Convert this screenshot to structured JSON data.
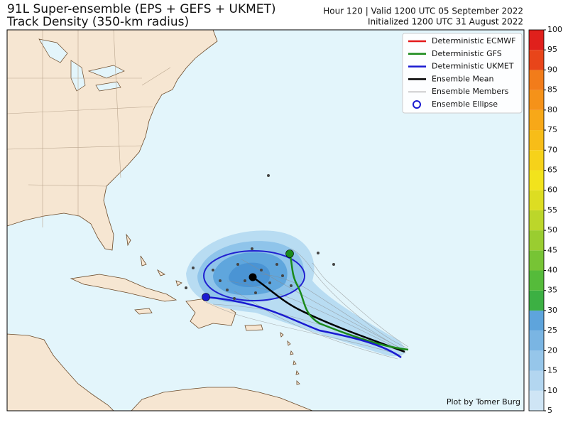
{
  "header": {
    "title": "91L Super-ensemble (EPS + GEFS + UKMET)",
    "subtitle": "Track Density (350-km radius)",
    "valid": "Hour 120 | Valid 1200 UTC 05 September 2022",
    "initialized": "Initialized 1200 UTC 31 August 2022"
  },
  "legend": {
    "items": [
      {
        "name": "Deterministic ECMWF",
        "color": "#e41a1c",
        "style": "line"
      },
      {
        "name": "Deterministic GFS",
        "color": "#1a8a1a",
        "style": "line"
      },
      {
        "name": "Deterministic UKMET",
        "color": "#1a1ad0",
        "style": "line"
      },
      {
        "name": "Ensemble Mean",
        "color": "#000000",
        "style": "line"
      },
      {
        "name": "Ensemble Members",
        "color": "#888888",
        "style": "thin"
      },
      {
        "name": "Ensemble Ellipse",
        "color": "#1a1ad0",
        "style": "circle"
      }
    ]
  },
  "colorbar": {
    "ticks": [
      5,
      10,
      15,
      20,
      25,
      30,
      35,
      40,
      45,
      50,
      55,
      60,
      65,
      70,
      75,
      80,
      85,
      90,
      95,
      100
    ],
    "colors": [
      "#cfe5f5",
      "#b3d6f0",
      "#96c6ea",
      "#7ab5e3",
      "#5ea4dc",
      "#3cb043",
      "#55bb3a",
      "#77c435",
      "#9acd30",
      "#bcd62a",
      "#dddd22",
      "#f2e31c",
      "#f6d21a",
      "#f7bd18",
      "#f7a818",
      "#f59219",
      "#f27c1a",
      "#e8451a",
      "#e0201c"
    ]
  },
  "credit": "Plot by Tomer Burg"
}
